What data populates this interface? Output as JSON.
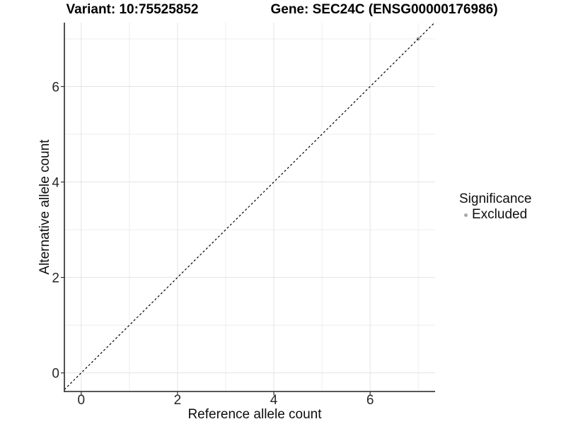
{
  "chart_data": {
    "type": "scatter",
    "title_left": "Variant: 10:75525852",
    "title_right": "Gene: SEC24C (ENSG00000176986)",
    "xlabel": "Reference allele count",
    "ylabel": "Alternative allele count",
    "x_axis": {
      "ticks": [
        0,
        2,
        4,
        6
      ],
      "tick_labels": [
        "0",
        "2",
        "4",
        "6"
      ],
      "minor_ticks": [
        1,
        3,
        5,
        7
      ],
      "range": [
        -0.35,
        7.35
      ]
    },
    "y_axis": {
      "ticks": [
        0,
        2,
        4,
        6
      ],
      "tick_labels": [
        "0",
        "2",
        "4",
        "6"
      ],
      "minor_ticks": [
        1,
        3,
        5,
        7
      ],
      "range": [
        -0.39,
        7.34
      ]
    },
    "reference_line": {
      "type": "identity",
      "slope": 1,
      "intercept": 0,
      "style": "dashed",
      "color": "#000000"
    },
    "points": [
      {
        "x": 7,
        "y": 7,
        "series": "Excluded"
      }
    ],
    "colors": {
      "grid_major": "#e3e3e3",
      "grid_minor": "#eeeeee",
      "axis_line": "#3f3f3f",
      "tick_mark": "#333333",
      "tick_label": "#262626",
      "background": "#ffffff",
      "excluded_point": "#b0b0b0"
    },
    "grid": "on",
    "legend_position": "right"
  },
  "legend": {
    "title": "Significance",
    "items": [
      {
        "label": "Excluded",
        "color": "#a9a9a9",
        "marker": "circle"
      }
    ]
  }
}
